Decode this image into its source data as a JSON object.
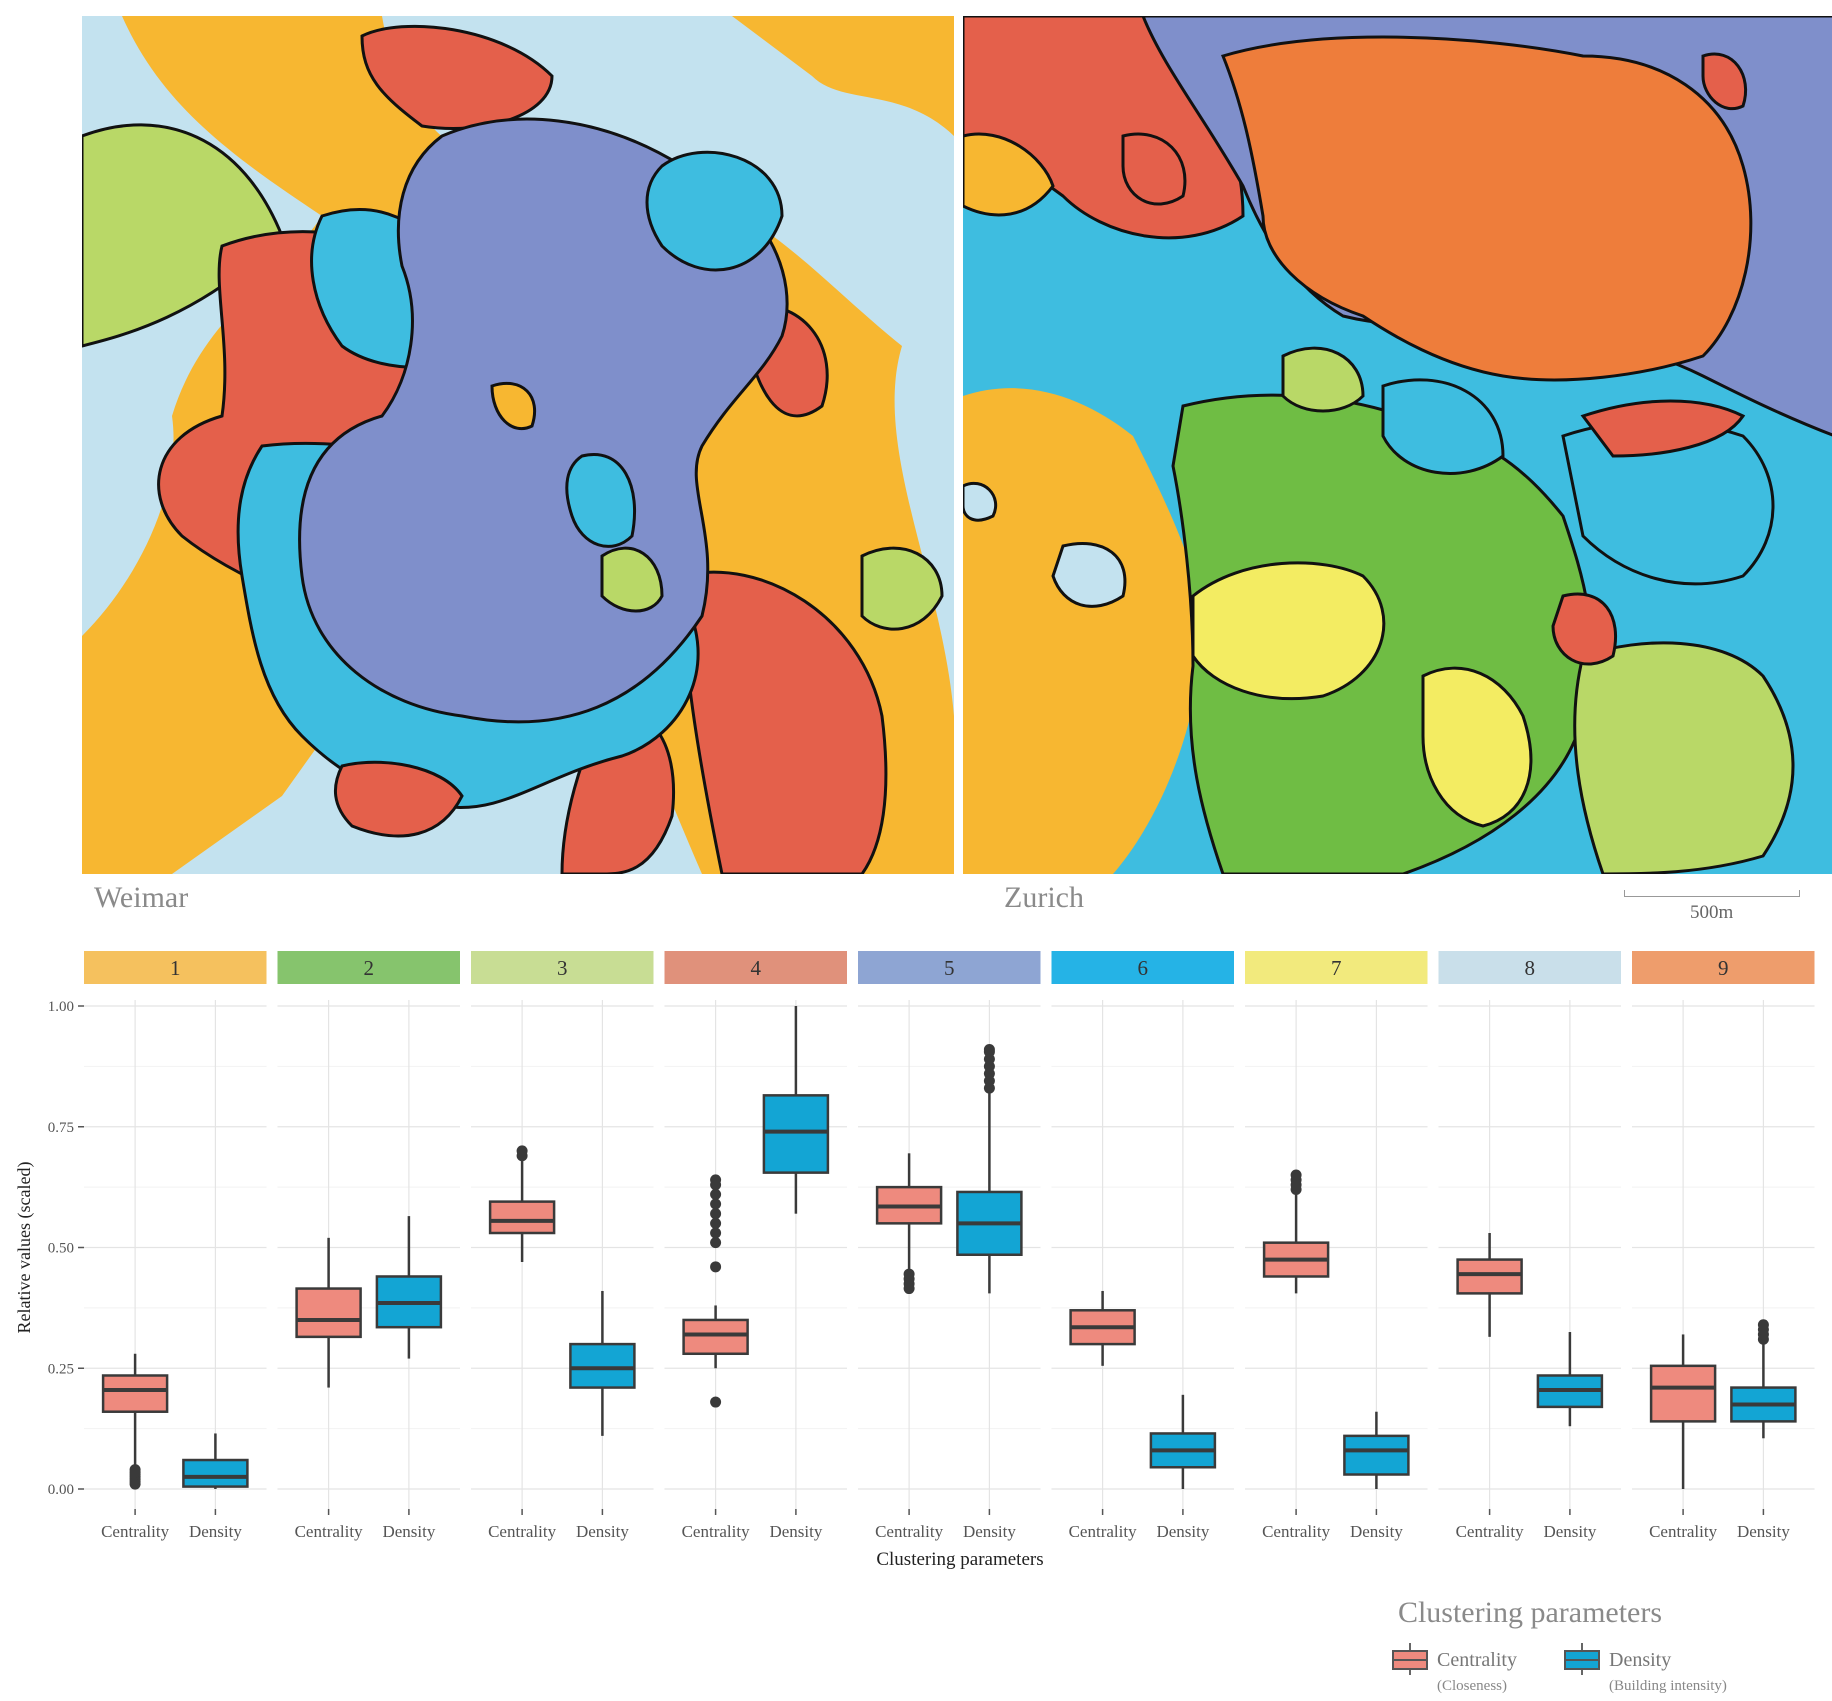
{
  "maps": {
    "left_label": "Weimar",
    "right_label": "Zurich",
    "scale_label": "500m"
  },
  "colors": {
    "c1": "#f7b731",
    "c2": "#6fbd44",
    "c3": "#b9d867",
    "c4": "#e4604b",
    "c5": "#7f8fcb",
    "c6": "#3ebde0",
    "c7": "#f3ec62",
    "c8": "#c3e2ef",
    "c9": "#ee7d3b",
    "centrality": "#ee8a7e",
    "density": "#13a5d4"
  },
  "chart_data": {
    "type": "boxplot",
    "title": "",
    "xlabel": "Clustering parameters",
    "ylabel": "Relative values (scaled)",
    "ylim": [
      0,
      1
    ],
    "yticks": [
      "0.00",
      "0.25",
      "0.50",
      "0.75",
      "1.00"
    ],
    "facets": [
      {
        "label": "1",
        "color": "#f5c15e",
        "boxes": [
          {
            "param": "Centrality",
            "whislo": 0.03,
            "q1": 0.16,
            "med": 0.205,
            "q3": 0.235,
            "whishi": 0.28,
            "outliers": [
              0.01,
              0.015,
              0.02,
              0.025,
              0.03,
              0.035,
              0.04
            ]
          },
          {
            "param": "Density",
            "whislo": 0.0,
            "q1": 0.005,
            "med": 0.025,
            "q3": 0.06,
            "whishi": 0.115,
            "outliers": []
          }
        ]
      },
      {
        "label": "2",
        "color": "#86c46d",
        "boxes": [
          {
            "param": "Centrality",
            "whislo": 0.21,
            "q1": 0.315,
            "med": 0.35,
            "q3": 0.415,
            "whishi": 0.52,
            "outliers": []
          },
          {
            "param": "Density",
            "whislo": 0.27,
            "q1": 0.335,
            "med": 0.385,
            "q3": 0.44,
            "whishi": 0.565,
            "outliers": []
          }
        ]
      },
      {
        "label": "3",
        "color": "#c8dd94",
        "boxes": [
          {
            "param": "Centrality",
            "whislo": 0.47,
            "q1": 0.53,
            "med": 0.555,
            "q3": 0.595,
            "whishi": 0.68,
            "outliers": [
              0.69,
              0.7
            ]
          },
          {
            "param": "Density",
            "whislo": 0.11,
            "q1": 0.21,
            "med": 0.25,
            "q3": 0.3,
            "whishi": 0.41,
            "outliers": []
          }
        ]
      },
      {
        "label": "4",
        "color": "#e0917b",
        "boxes": [
          {
            "param": "Centrality",
            "whislo": 0.25,
            "q1": 0.28,
            "med": 0.32,
            "q3": 0.35,
            "whishi": 0.38,
            "outliers": [
              0.18,
              0.46,
              0.51,
              0.53,
              0.55,
              0.57,
              0.59,
              0.61,
              0.63,
              0.64
            ]
          },
          {
            "param": "Density",
            "whislo": 0.57,
            "q1": 0.655,
            "med": 0.74,
            "q3": 0.815,
            "whishi": 1.0,
            "outliers": []
          }
        ]
      },
      {
        "label": "5",
        "color": "#8ea5d3",
        "boxes": [
          {
            "param": "Centrality",
            "whislo": 0.44,
            "q1": 0.55,
            "med": 0.585,
            "q3": 0.625,
            "whishi": 0.695,
            "outliers": [
              0.415,
              0.425,
              0.435,
              0.445
            ]
          },
          {
            "param": "Density",
            "whislo": 0.405,
            "q1": 0.485,
            "med": 0.55,
            "q3": 0.615,
            "whishi": 0.83,
            "outliers": [
              0.83,
              0.845,
              0.86,
              0.875,
              0.89,
              0.905,
              0.91
            ]
          }
        ]
      },
      {
        "label": "6",
        "color": "#25b3e6",
        "boxes": [
          {
            "param": "Centrality",
            "whislo": 0.255,
            "q1": 0.3,
            "med": 0.335,
            "q3": 0.37,
            "whishi": 0.41,
            "outliers": []
          },
          {
            "param": "Density",
            "whislo": 0.0,
            "q1": 0.045,
            "med": 0.08,
            "q3": 0.115,
            "whishi": 0.195,
            "outliers": []
          }
        ]
      },
      {
        "label": "7",
        "color": "#f2ea7d",
        "boxes": [
          {
            "param": "Centrality",
            "whislo": 0.405,
            "q1": 0.44,
            "med": 0.475,
            "q3": 0.51,
            "whishi": 0.62,
            "outliers": [
              0.62,
              0.63,
              0.64,
              0.65
            ]
          },
          {
            "param": "Density",
            "whislo": 0.0,
            "q1": 0.03,
            "med": 0.08,
            "q3": 0.11,
            "whishi": 0.16,
            "outliers": []
          }
        ]
      },
      {
        "label": "8",
        "color": "#c9dfea",
        "boxes": [
          {
            "param": "Centrality",
            "whislo": 0.315,
            "q1": 0.405,
            "med": 0.445,
            "q3": 0.475,
            "whishi": 0.53,
            "outliers": []
          },
          {
            "param": "Density",
            "whislo": 0.13,
            "q1": 0.17,
            "med": 0.205,
            "q3": 0.235,
            "whishi": 0.325,
            "outliers": []
          }
        ]
      },
      {
        "label": "9",
        "color": "#ee9d6c",
        "boxes": [
          {
            "param": "Centrality",
            "whislo": 0.0,
            "q1": 0.14,
            "med": 0.21,
            "q3": 0.255,
            "whishi": 0.32,
            "outliers": []
          },
          {
            "param": "Density",
            "whislo": 0.105,
            "q1": 0.14,
            "med": 0.175,
            "q3": 0.21,
            "whishi": 0.31,
            "outliers": [
              0.31,
              0.32,
              0.33,
              0.34
            ]
          }
        ]
      }
    ],
    "legend": {
      "title": "Clustering parameters",
      "items": [
        {
          "label": "Centrality",
          "sublabel": "(Closeness)",
          "color": "#ee8a7e"
        },
        {
          "label": "Density",
          "sublabel": "(Building intensity)",
          "color": "#13a5d4"
        }
      ]
    }
  }
}
